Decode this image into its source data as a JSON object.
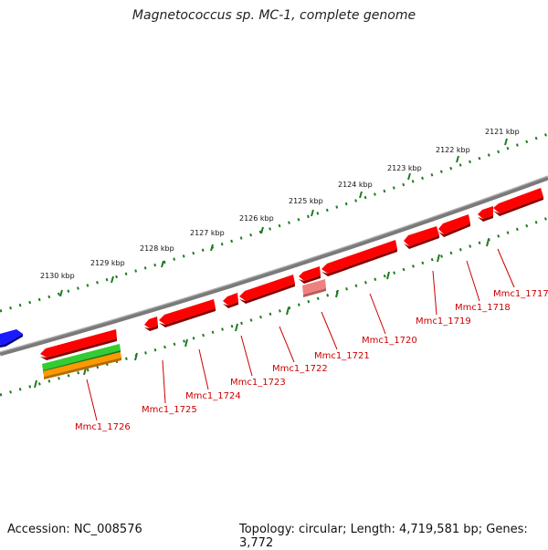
{
  "title": "Magnetococcus sp. MC-1, complete genome",
  "accession_text": "Accession: NC_008576",
  "topology_text": "Topology: circular; Length: 4,719,581 bp; Genes: 3,772",
  "colors": {
    "backbone": "#7a7a7a",
    "tick_track": "#1f7a1f",
    "gene_forward": "#1a1aff",
    "gene_reverse": "#ff0000",
    "gene_faded": "#f08080",
    "feature_green": "#33cc33",
    "feature_orange": "#ff9900",
    "label": "#cc0000",
    "kbp_label": "#111111"
  },
  "kbp_labels": [
    "2121 kbp",
    "2122 kbp",
    "2123 kbp",
    "2124 kbp",
    "2125 kbp",
    "2126 kbp",
    "2127 kbp",
    "2128 kbp",
    "2129 kbp",
    "2130 kbp"
  ],
  "gene_labels": [
    "Mmc1_1717",
    "Mmc1_1718",
    "Mmc1_1719",
    "Mmc1_1720",
    "Mmc1_1721",
    "Mmc1_1722",
    "Mmc1_1723",
    "Mmc1_1724",
    "Mmc1_1725",
    "Mmc1_1726"
  ]
}
